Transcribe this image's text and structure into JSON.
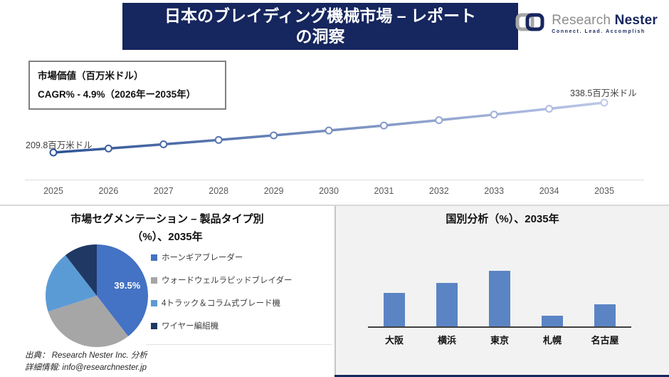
{
  "header": {
    "title_line1": "日本のブレイディング機械市場 – レポート",
    "title_line2": "の洞察"
  },
  "logo": {
    "brand_primary": "Research",
    "brand_secondary": "Nester",
    "tagline": "Connect. Lead. Accomplish",
    "icon": "chain-links",
    "colors": {
      "gray": "#A6A6A6",
      "navy": "#16265E"
    }
  },
  "info_box": {
    "line1": "市場価値（百万米ドル）",
    "line2": "CAGR% - 4.9%（2026年ー2035年）"
  },
  "chart_data": [
    {
      "id": "market_value_line",
      "type": "line",
      "x": [
        2025,
        2026,
        2027,
        2028,
        2029,
        2030,
        2031,
        2032,
        2033,
        2034,
        2035
      ],
      "values": [
        209.8,
        220.1,
        230.9,
        242.2,
        254.0,
        266.5,
        279.5,
        293.2,
        307.6,
        322.7,
        338.5
      ],
      "start_label": "209.8百万米ドル",
      "end_label": "338.5百万米ドル",
      "ylabel": "市場価値（百万米ドル）",
      "cagr": "4.9%",
      "grid": "x-axis baseline only",
      "line_gradient": [
        "#2E5395",
        "#BDC8E9"
      ],
      "marker": "open-circle"
    },
    {
      "id": "segmentation_pie",
      "type": "pie",
      "title_line1": "市場セグメンテーション – 製品タイプ別",
      "title_line2": "（%）、2035年",
      "legend_position": "right",
      "slices": [
        {
          "label": "ホーンギアブレーダー",
          "value": 39.5,
          "color": "#4472C4",
          "data_label": "39.5%"
        },
        {
          "label": "ウォードウェルラピッドブレイダー",
          "value": 30.5,
          "color": "#A6A6A6"
        },
        {
          "label": "4トラック＆コラム式ブレード機",
          "value": 19.5,
          "color": "#5B9BD5"
        },
        {
          "label": "ワイヤー編組機",
          "value": 10.5,
          "color": "#1F3864"
        }
      ]
    },
    {
      "id": "country_bar",
      "type": "bar",
      "title": "国別分析（%）、2035年",
      "categories": [
        "大阪",
        "横浜",
        "東京",
        "札幌",
        "名古屋"
      ],
      "values": [
        18.0,
        23.5,
        30.0,
        5.8,
        11.8
      ],
      "bar_color": "#5B84C4",
      "ylim": [
        0,
        30
      ],
      "grid": false,
      "value_labels": false
    }
  ],
  "footer": {
    "source": "出典： Research Nester Inc. 分析",
    "contact": "詳細情報: info@researchnester.jp"
  }
}
